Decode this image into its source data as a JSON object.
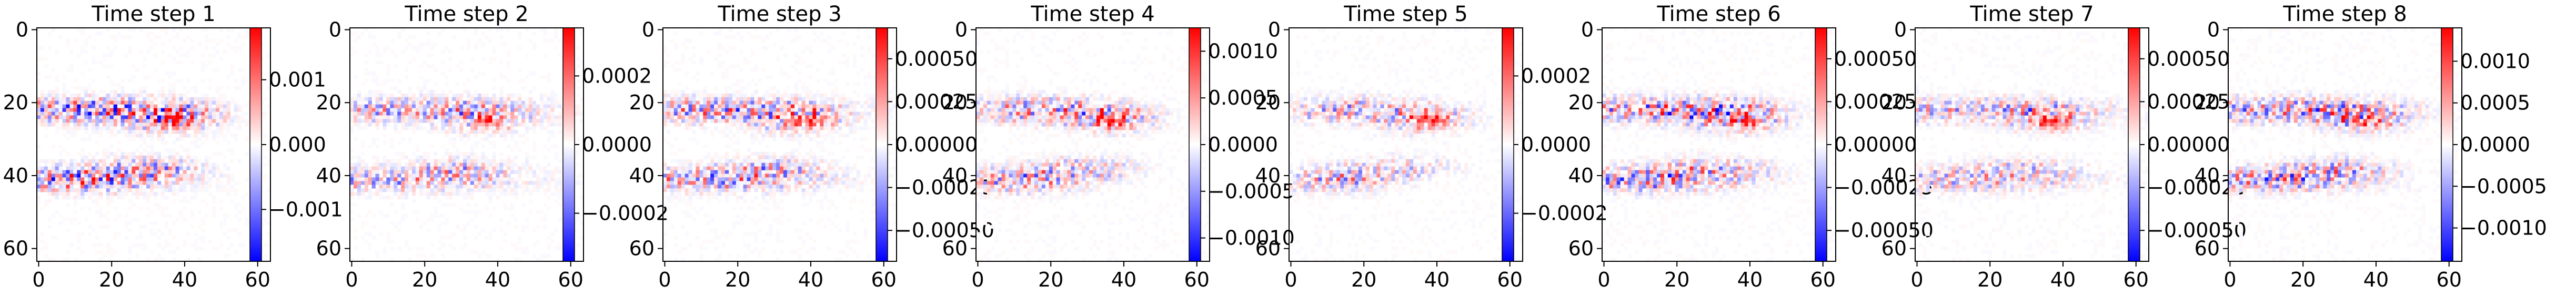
{
  "chart_data": [
    {
      "type": "heatmap",
      "title": "Time step 1",
      "xticks": [
        "0",
        "20",
        "40",
        "60"
      ],
      "yticks": [
        "0",
        "20",
        "40",
        "60"
      ],
      "xlim": [
        -0.5,
        63.5
      ],
      "ylim": [
        63.5,
        -0.5
      ],
      "colormap": "bwr",
      "colorbar": {
        "range": [
          -0.0018,
          0.0018
        ],
        "ticks": [
          {
            "v": 0.001,
            "t": "0.001"
          },
          {
            "v": 0.0,
            "t": "0.000"
          },
          {
            "v": -0.001,
            "t": "−0.001"
          }
        ]
      }
    },
    {
      "type": "heatmap",
      "title": "Time step 2",
      "xticks": [
        "0",
        "20",
        "40",
        "60"
      ],
      "yticks": [
        "0",
        "20",
        "40",
        "60"
      ],
      "xlim": [
        -0.5,
        63.5
      ],
      "ylim": [
        63.5,
        -0.5
      ],
      "colormap": "bwr",
      "colorbar": {
        "range": [
          -0.00034,
          0.00034
        ],
        "ticks": [
          {
            "v": 0.0002,
            "t": "0.0002"
          },
          {
            "v": 0.0,
            "t": "0.0000"
          },
          {
            "v": -0.0002,
            "t": "−0.0002"
          }
        ]
      }
    },
    {
      "type": "heatmap",
      "title": "Time step 3",
      "xticks": [
        "0",
        "20",
        "40",
        "60"
      ],
      "yticks": [
        "0",
        "20",
        "40",
        "60"
      ],
      "xlim": [
        -0.5,
        63.5
      ],
      "ylim": [
        63.5,
        -0.5
      ],
      "colormap": "bwr",
      "colorbar": {
        "range": [
          -0.00068,
          0.00068
        ],
        "ticks": [
          {
            "v": 0.0005,
            "t": "0.00050"
          },
          {
            "v": 0.00025,
            "t": "0.00025"
          },
          {
            "v": 0.0,
            "t": "0.00000"
          },
          {
            "v": -0.00025,
            "t": "−0.00025"
          },
          {
            "v": -0.0005,
            "t": "−0.00050"
          }
        ]
      }
    },
    {
      "type": "heatmap",
      "title": "Time step 4",
      "xticks": [
        "0",
        "20",
        "40",
        "60"
      ],
      "yticks": [
        "0",
        "20",
        "40",
        "60"
      ],
      "xlim": [
        -0.5,
        63.5
      ],
      "ylim": [
        63.5,
        -0.5
      ],
      "colormap": "bwr",
      "colorbar": {
        "range": [
          -0.00125,
          0.00125
        ],
        "ticks": [
          {
            "v": 0.001,
            "t": "0.0010"
          },
          {
            "v": 0.0005,
            "t": "0.0005"
          },
          {
            "v": 0.0,
            "t": "0.0000"
          },
          {
            "v": -0.0005,
            "t": "−0.0005"
          },
          {
            "v": -0.001,
            "t": "−0.0010"
          }
        ]
      }
    },
    {
      "type": "heatmap",
      "title": "Time step 5",
      "xticks": [
        "0",
        "20",
        "40",
        "60"
      ],
      "yticks": [
        "0",
        "20",
        "40",
        "60"
      ],
      "xlim": [
        -0.5,
        63.5
      ],
      "ylim": [
        63.5,
        -0.5
      ],
      "colormap": "bwr",
      "colorbar": {
        "range": [
          -0.00034,
          0.00034
        ],
        "ticks": [
          {
            "v": 0.0002,
            "t": "0.0002"
          },
          {
            "v": 0.0,
            "t": "0.0000"
          },
          {
            "v": -0.0002,
            "t": "−0.0002"
          }
        ]
      }
    },
    {
      "type": "heatmap",
      "title": "Time step 6",
      "xticks": [
        "0",
        "20",
        "40",
        "60"
      ],
      "yticks": [
        "0",
        "20",
        "40",
        "60"
      ],
      "xlim": [
        -0.5,
        63.5
      ],
      "ylim": [
        63.5,
        -0.5
      ],
      "colormap": "bwr",
      "colorbar": {
        "range": [
          -0.00068,
          0.00068
        ],
        "ticks": [
          {
            "v": 0.0005,
            "t": "0.00050"
          },
          {
            "v": 0.00025,
            "t": "0.00025"
          },
          {
            "v": 0.0,
            "t": "0.00000"
          },
          {
            "v": -0.00025,
            "t": "−0.00025"
          },
          {
            "v": -0.0005,
            "t": "−0.00050"
          }
        ]
      }
    },
    {
      "type": "heatmap",
      "title": "Time step 7",
      "xticks": [
        "0",
        "20",
        "40",
        "60"
      ],
      "yticks": [
        "0",
        "20",
        "40",
        "60"
      ],
      "xlim": [
        -0.5,
        63.5
      ],
      "ylim": [
        63.5,
        -0.5
      ],
      "colormap": "bwr",
      "colorbar": {
        "range": [
          -0.00068,
          0.00068
        ],
        "ticks": [
          {
            "v": 0.0005,
            "t": "0.00050"
          },
          {
            "v": 0.00025,
            "t": "0.00025"
          },
          {
            "v": 0.0,
            "t": "0.00000"
          },
          {
            "v": -0.00025,
            "t": "−0.00025"
          },
          {
            "v": -0.0005,
            "t": "−0.00050"
          }
        ]
      }
    },
    {
      "type": "heatmap",
      "title": "Time step 8",
      "xticks": [
        "0",
        "20",
        "40",
        "60"
      ],
      "yticks": [
        "0",
        "20",
        "40",
        "60"
      ],
      "xlim": [
        -0.5,
        63.5
      ],
      "ylim": [
        63.5,
        -0.5
      ],
      "colormap": "bwr",
      "colorbar": {
        "range": [
          -0.0014,
          0.0014
        ],
        "ticks": [
          {
            "v": 0.001,
            "t": "0.0010"
          },
          {
            "v": 0.0005,
            "t": "0.0005"
          },
          {
            "v": 0.0,
            "t": "0.0000"
          },
          {
            "v": -0.0005,
            "t": "−0.0005"
          },
          {
            "v": -0.001,
            "t": "−0.0010"
          }
        ]
      }
    }
  ]
}
